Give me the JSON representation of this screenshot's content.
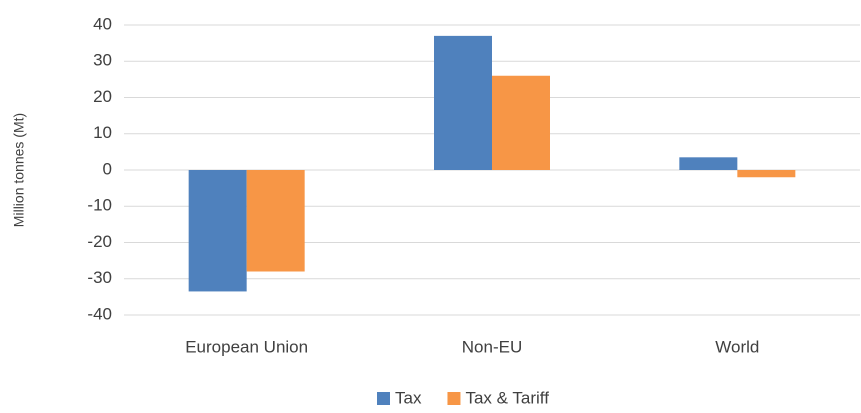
{
  "chart_data": {
    "type": "bar",
    "y_label": "Million tonnes (Mt)",
    "categories": [
      "European Union",
      "Non-EU",
      "World"
    ],
    "series": [
      {
        "name": "Tax",
        "color": "#4f81bd",
        "values": [
          -33.5,
          37,
          3.5
        ]
      },
      {
        "name": "Tax & Tariff",
        "color": "#f79646",
        "values": [
          -28,
          26,
          -2
        ]
      }
    ],
    "ylim": [
      -40,
      40
    ],
    "yticks": [
      -40,
      -30,
      -20,
      -10,
      0,
      10,
      20,
      30,
      40
    ],
    "grid": true,
    "legend": "bottom"
  }
}
